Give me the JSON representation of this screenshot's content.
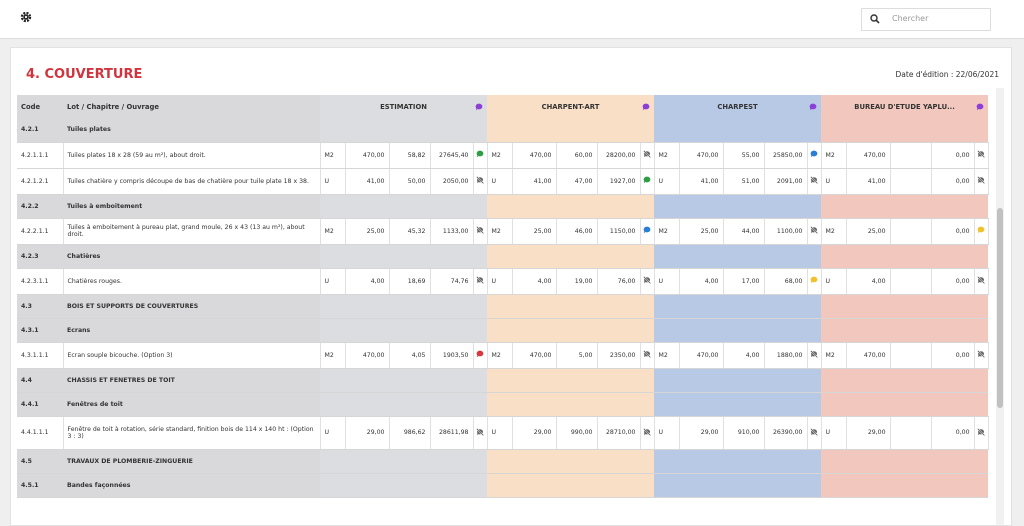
{
  "header": {
    "search_placeholder": "Chercher"
  },
  "title": "4. COUVERTURE",
  "edition_date": "Date d'édition : 22/06/2021",
  "table": {
    "columns": [
      "Code",
      "Lot / Chapitre / Ouvrage"
    ],
    "groups": [
      {
        "name": "ESTIMATION",
        "color": "#dcdde0"
      },
      {
        "name": "CHARPENT-ART",
        "color": "#f8dfc5"
      },
      {
        "name": "CHARPEST",
        "color": "#b8c9e6"
      },
      {
        "name": "BUREAU D'ETUDE YAPLU...",
        "color": "#f2c7be"
      }
    ],
    "rows": [
      {
        "code": "4.2.1",
        "label": "Tuiles plates"
      },
      {
        "code": "4.2.1.1.1",
        "label": "Tuiles plates 18 x 28 (59 au m²), about droit.",
        "cells": [
          {
            "unit": "M2",
            "qty": "470,00",
            "price": "58,82",
            "total": "27645,40",
            "note": "#2e9e45"
          },
          {
            "unit": "M2",
            "qty": "470,00",
            "price": "60,00",
            "total": "28200,00"
          },
          {
            "unit": "M2",
            "qty": "470,00",
            "price": "55,00",
            "total": "25850,00",
            "note": "#2a7fd4"
          },
          {
            "unit": "M2",
            "qty": "470,00",
            "total": "0,00"
          }
        ]
      },
      {
        "code": "4.2.1.2.1",
        "label": "Tuiles chatière y compris découpe de bas de chatière pour tuile plate 18 x 38.",
        "cells": [
          {
            "unit": "U",
            "qty": "41,00",
            "price": "50,00",
            "total": "2050,00"
          },
          {
            "unit": "U",
            "qty": "41,00",
            "price": "47,00",
            "total": "1927,00",
            "note": "#2e9e45"
          },
          {
            "unit": "U",
            "qty": "41,00",
            "price": "51,00",
            "total": "2091,00"
          },
          {
            "unit": "U",
            "qty": "41,00",
            "total": "0,00"
          }
        ]
      },
      {
        "code": "4.2.2",
        "label": "Tuiles à emboitement"
      },
      {
        "code": "4.2.2.1.1",
        "label": "Tuiles à emboitement à pureau plat, grand moule, 26 x 43 (13 au m²), about droit.",
        "cells": [
          {
            "unit": "M2",
            "qty": "25,00",
            "price": "45,32",
            "total": "1133,00"
          },
          {
            "unit": "M2",
            "qty": "25,00",
            "price": "46,00",
            "total": "1150,00",
            "note": "#2a7fd4"
          },
          {
            "unit": "M2",
            "qty": "25,00",
            "price": "44,00",
            "total": "1100,00"
          },
          {
            "unit": "M2",
            "qty": "25,00",
            "total": "0,00",
            "note": "#f2c12e"
          }
        ]
      },
      {
        "code": "4.2.3",
        "label": "Chatières"
      },
      {
        "code": "4.2.3.1.1",
        "label": "Chatières rouges.",
        "cells": [
          {
            "unit": "U",
            "qty": "4,00",
            "price": "18,69",
            "total": "74,76"
          },
          {
            "unit": "U",
            "qty": "4,00",
            "price": "19,00",
            "total": "76,00"
          },
          {
            "unit": "U",
            "qty": "4,00",
            "price": "17,00",
            "total": "68,00",
            "note": "#f2c12e"
          },
          {
            "unit": "U",
            "qty": "4,00",
            "total": "0,00"
          }
        ]
      },
      {
        "code": "4.3",
        "label": "BOIS ET SUPPORTS DE COUVERTURES"
      },
      {
        "code": "4.3.1",
        "label": "Ecrans"
      },
      {
        "code": "4.3.1.1.1",
        "label": "Ecran souple bicouche. (Option 3)",
        "cells": [
          {
            "unit": "M2",
            "qty": "470,00",
            "price": "4,05",
            "total": "1903,50",
            "note": "#d9383e"
          },
          {
            "unit": "M2",
            "qty": "470,00",
            "price": "5,00",
            "total": "2350,00"
          },
          {
            "unit": "M2",
            "qty": "470,00",
            "price": "4,00",
            "total": "1880,00"
          },
          {
            "unit": "M2",
            "qty": "470,00",
            "total": "0,00"
          }
        ]
      },
      {
        "code": "4.4",
        "label": "CHASSIS ET FENETRES DE TOIT"
      },
      {
        "code": "4.4.1",
        "label": "Fenêtres de toit"
      },
      {
        "code": "4.4.1.1.1",
        "label": "Fenêtre de toit à rotation, série standard, finition bois de 114 x 140 ht : (Option 3 : 3)",
        "cells": [
          {
            "unit": "U",
            "qty": "29,00",
            "price": "986,62",
            "total": "28611,98"
          },
          {
            "unit": "U",
            "qty": "29,00",
            "price": "990,00",
            "total": "28710,00"
          },
          {
            "unit": "U",
            "qty": "29,00",
            "price": "910,00",
            "total": "26390,00"
          },
          {
            "unit": "U",
            "qty": "29,00",
            "total": "0,00"
          }
        ]
      },
      {
        "code": "4.5",
        "label": "TRAVAUX DE PLOMBERIE-ZINGUERIE"
      },
      {
        "code": "4.5.1",
        "label": "Bandes façonnées"
      }
    ]
  }
}
